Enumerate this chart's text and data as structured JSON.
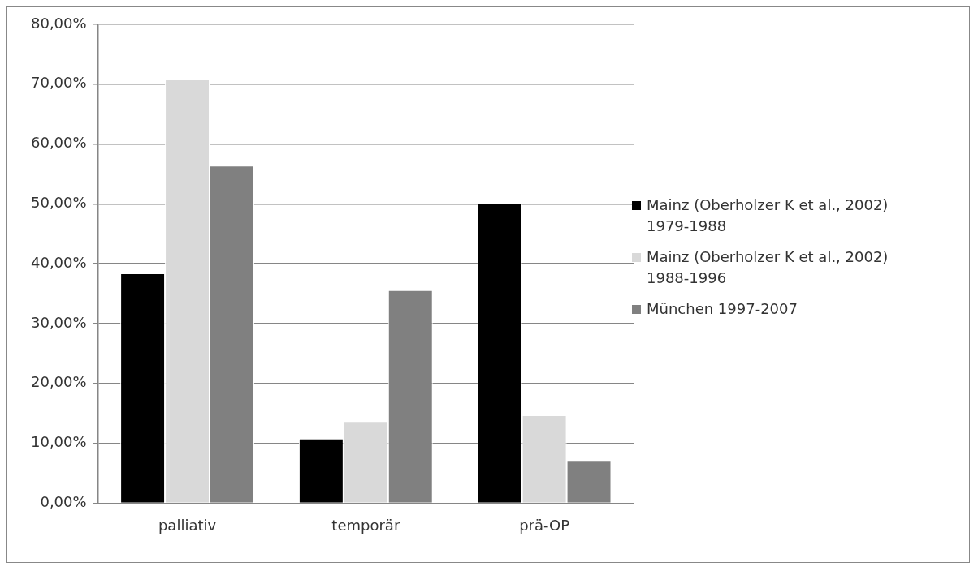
{
  "chart_data": {
    "type": "bar",
    "categories": [
      "palliativ",
      "temporär",
      "prä-OP"
    ],
    "series": [
      {
        "name": "Mainz (Oberholzer K et al., 2002) 1979-1988",
        "color": "#000000",
        "values": [
          38.4,
          10.8,
          50.1
        ]
      },
      {
        "name": "Mainz (Oberholzer K et al., 2002) 1988-1996",
        "color": "#d9d9d9",
        "values": [
          70.8,
          13.7,
          14.7
        ]
      },
      {
        "name": "München 1997-2007",
        "color": "#808080",
        "values": [
          56.4,
          35.6,
          7.2
        ]
      }
    ],
    "ylim": [
      0,
      80
    ],
    "yticks": [
      {
        "value": 0,
        "label": "0,00%"
      },
      {
        "value": 10,
        "label": "10,00%"
      },
      {
        "value": 20,
        "label": "20,00%"
      },
      {
        "value": 30,
        "label": "30,00%"
      },
      {
        "value": 40,
        "label": "40,00%"
      },
      {
        "value": 50,
        "label": "50,00%"
      },
      {
        "value": 60,
        "label": "60,00%"
      },
      {
        "value": 70,
        "label": "70,00%"
      },
      {
        "value": 80,
        "label": "80,00%"
      }
    ],
    "grid": "y",
    "legend": "right"
  }
}
